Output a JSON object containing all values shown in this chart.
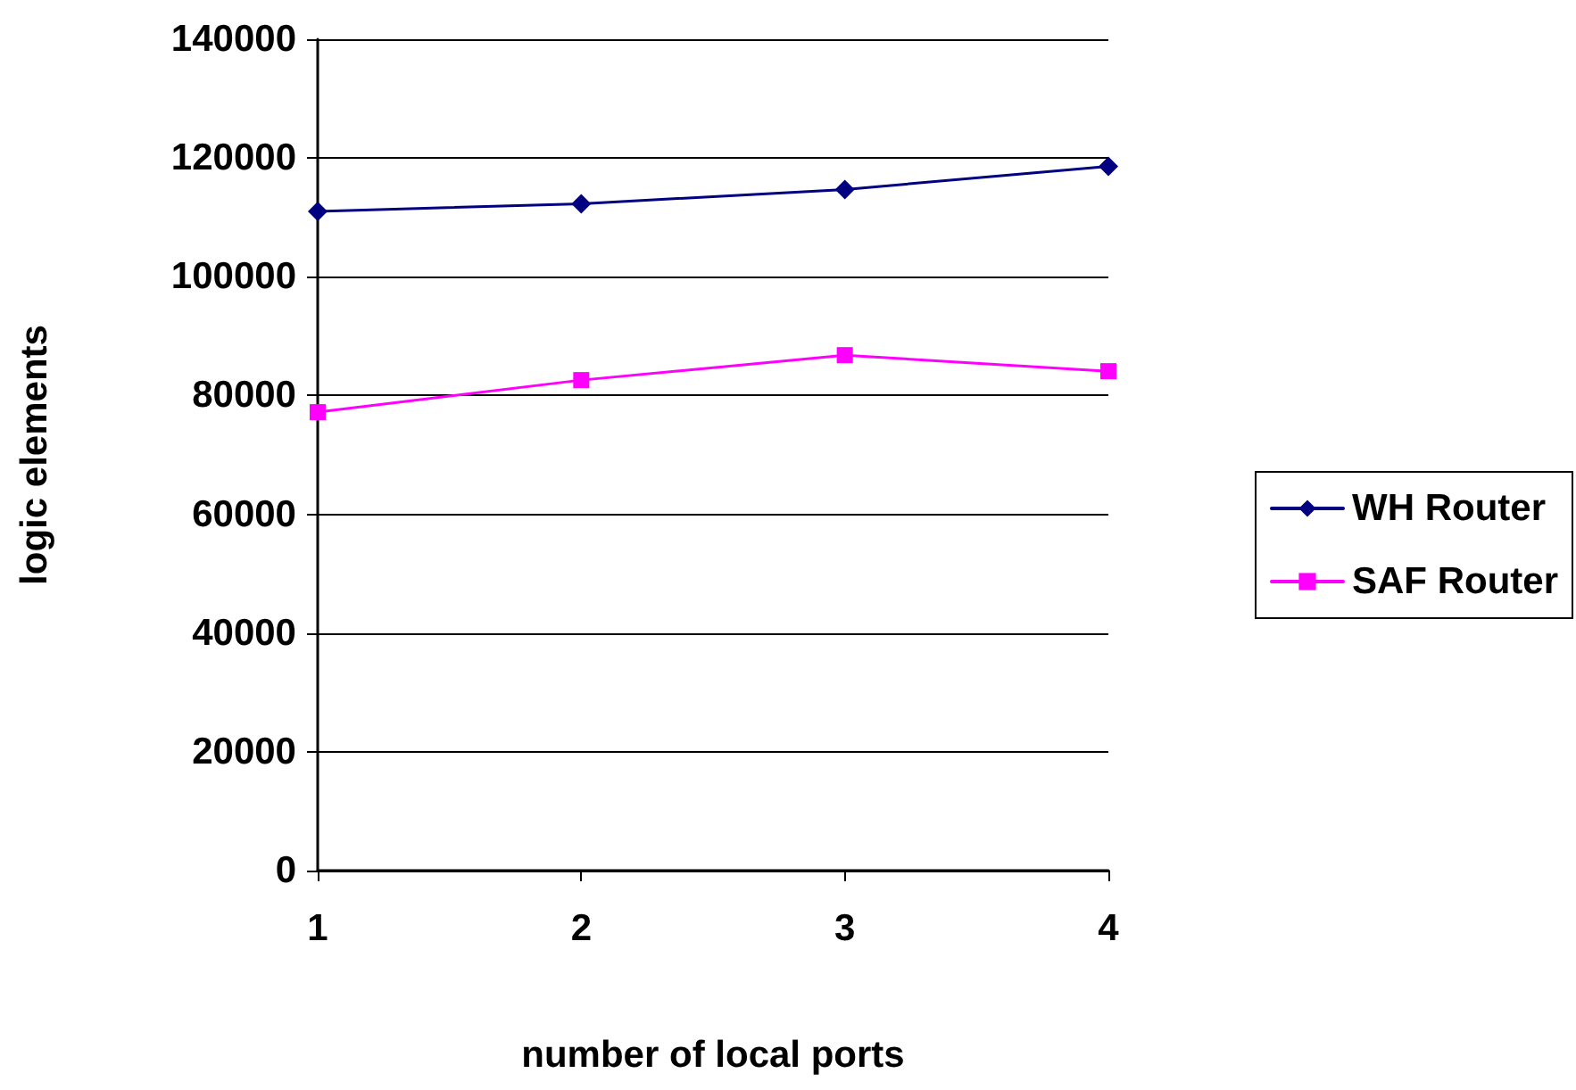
{
  "chart_data": {
    "type": "line",
    "xlabel": "number of local ports",
    "ylabel": "logic elements",
    "categories": [
      "1",
      "2",
      "3",
      "4"
    ],
    "series": [
      {
        "name": "WH Router",
        "color": "#000080",
        "marker": "diamond",
        "values": [
          111000,
          112300,
          114700,
          118600
        ]
      },
      {
        "name": "SAF Router",
        "color": "#ff00ff",
        "marker": "square",
        "values": [
          77200,
          82600,
          86800,
          84100
        ]
      }
    ],
    "ylim": [
      0,
      140000
    ],
    "yticks": [
      0,
      20000,
      40000,
      60000,
      80000,
      100000,
      120000,
      140000
    ],
    "grid": "y",
    "legend": "right",
    "line_style": "solid"
  }
}
